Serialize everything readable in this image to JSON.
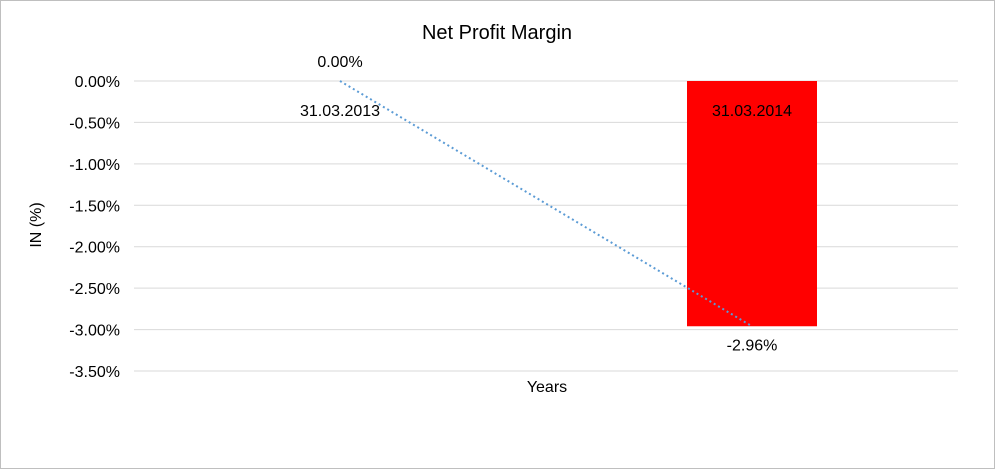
{
  "chart_data": {
    "type": "bar",
    "title": "Net Profit Margin",
    "xlabel": "Years",
    "ylabel": "IN (%)",
    "categories": [
      "31.03.2013",
      "31.03.2014"
    ],
    "values": [
      0.0,
      -2.96
    ],
    "value_labels": [
      "0.00%",
      "-2.96%"
    ],
    "ylim": [
      -3.5,
      0.0
    ],
    "yticks": [
      0.0,
      -0.5,
      -1.0,
      -1.5,
      -2.0,
      -2.5,
      -3.0,
      -3.5
    ],
    "ytick_labels": [
      "0.00%",
      "-0.50%",
      "-1.00%",
      "-1.50%",
      "-2.00%",
      "-2.50%",
      "-3.00%",
      "-3.50%"
    ],
    "grid": true,
    "trendline": "linear, dotted",
    "colors": {
      "bar": "#ff0000",
      "trendline": "#5b9bd5",
      "grid": "#d9d9d9"
    }
  }
}
